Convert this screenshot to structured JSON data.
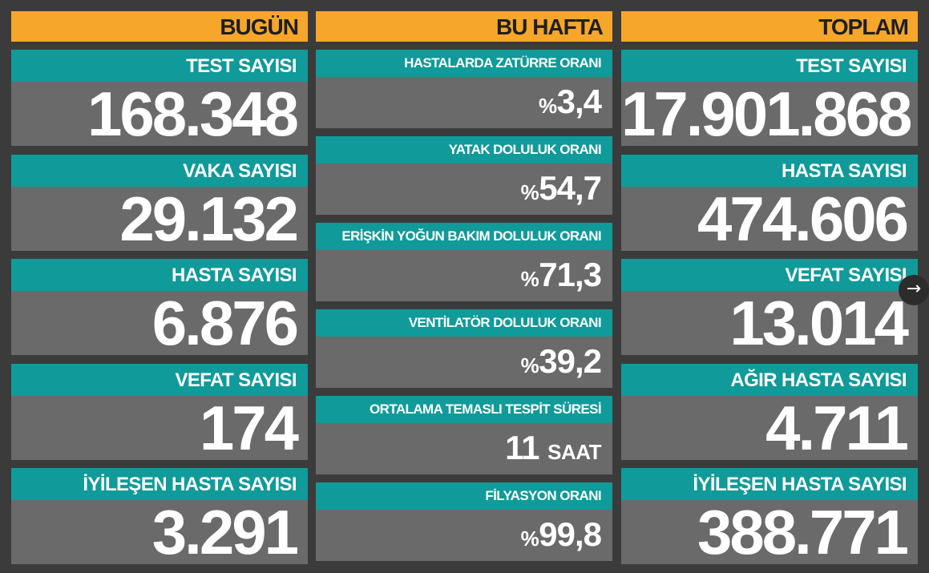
{
  "columns": [
    {
      "title": "BUGÜN",
      "items": [
        {
          "label": "TEST SAYISI",
          "value": "168.348"
        },
        {
          "label": "VAKA SAYISI",
          "value": "29.132"
        },
        {
          "label": "HASTA SAYISI",
          "value": "6.876"
        },
        {
          "label": "VEFAT SAYISI",
          "value": "174"
        },
        {
          "label": "İYİLEŞEN HASTA SAYISI",
          "value": "3.291"
        }
      ]
    },
    {
      "title": "BU HAFTA",
      "items": [
        {
          "label": "HASTALARDA ZATÜRRE ORANI",
          "prefix": "%",
          "value": "3,4"
        },
        {
          "label": "YATAK DOLULUK ORANI",
          "prefix": "%",
          "value": "54,7"
        },
        {
          "label": "ERİŞKİN YOĞUN BAKIM DOLULUK ORANI",
          "prefix": "%",
          "value": "71,3"
        },
        {
          "label": "VENTİLATÖR DOLULUK ORANI",
          "prefix": "%",
          "value": "39,2"
        },
        {
          "label": "ORTALAMA TEMASLI TESPİT SÜRESİ",
          "value": "11",
          "suffix": "SAAT"
        },
        {
          "label": "FİLYASYON ORANI",
          "prefix": "%",
          "value": "99,8"
        }
      ]
    },
    {
      "title": "TOPLAM",
      "items": [
        {
          "label": "TEST SAYISI",
          "value": "17.901.868"
        },
        {
          "label": "HASTA SAYISI",
          "value": "474.606"
        },
        {
          "label": "VEFAT SAYISI",
          "value": "13.014"
        },
        {
          "label": "AĞIR HASTA SAYISI",
          "value": "4.711"
        },
        {
          "label": "İYİLEŞEN HASTA SAYISI",
          "value": "388.771"
        }
      ]
    }
  ]
}
